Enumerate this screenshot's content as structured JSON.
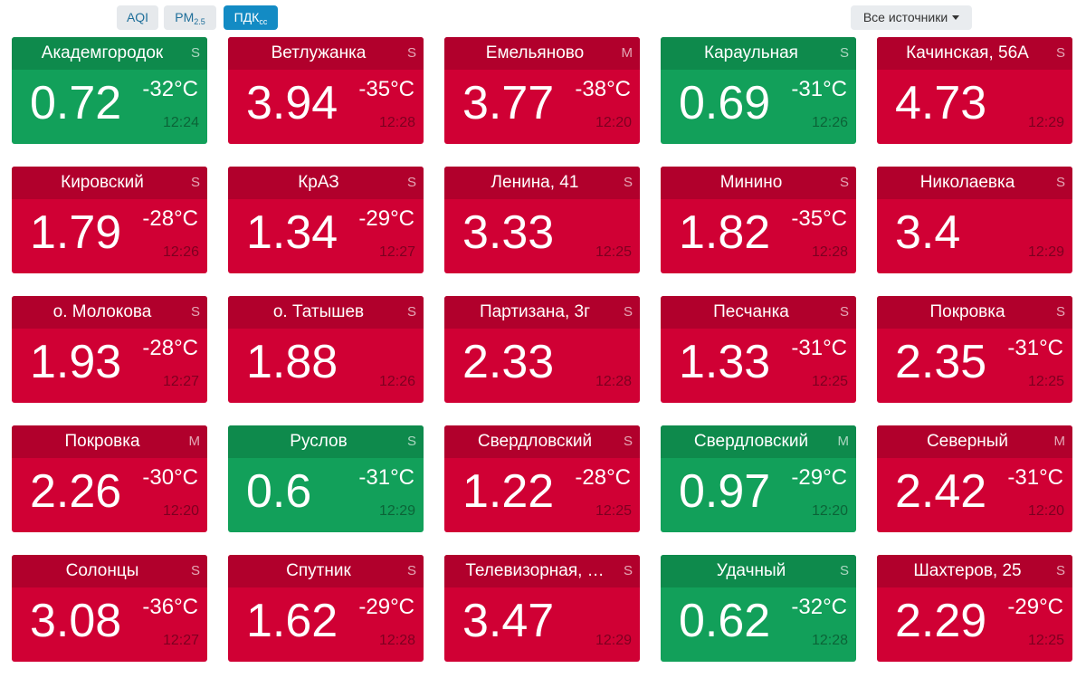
{
  "toolbar": {
    "aqi_label": "AQI",
    "pm_label": "PM",
    "pm_sub": "2.5",
    "pdk_label": "ПДК",
    "pdk_sub": "сс",
    "active": "pdk",
    "sources_label": "Все источники"
  },
  "colors": {
    "red": "#d00034",
    "green": "#12a05a"
  },
  "stations": [
    {
      "name": "Академгородок",
      "source": "S",
      "value": "0.72",
      "temp": "-32°C",
      "time": "12:24",
      "status": "green"
    },
    {
      "name": "Ветлужанка",
      "source": "S",
      "value": "3.94",
      "temp": "-35°C",
      "time": "12:28",
      "status": "red"
    },
    {
      "name": "Емельяново",
      "source": "M",
      "value": "3.77",
      "temp": "-38°C",
      "time": "12:20",
      "status": "red"
    },
    {
      "name": "Караульная",
      "source": "S",
      "value": "0.69",
      "temp": "-31°C",
      "time": "12:26",
      "status": "green"
    },
    {
      "name": "Качинская, 56А",
      "source": "S",
      "value": "4.73",
      "temp": "",
      "time": "12:29",
      "status": "red"
    },
    {
      "name": "Кировский",
      "source": "S",
      "value": "1.79",
      "temp": "-28°C",
      "time": "12:26",
      "status": "red"
    },
    {
      "name": "КрАЗ",
      "source": "S",
      "value": "1.34",
      "temp": "-29°C",
      "time": "12:27",
      "status": "red"
    },
    {
      "name": "Ленина, 41",
      "source": "S",
      "value": "3.33",
      "temp": "",
      "time": "12:25",
      "status": "red"
    },
    {
      "name": "Минино",
      "source": "S",
      "value": "1.82",
      "temp": "-35°C",
      "time": "12:28",
      "status": "red"
    },
    {
      "name": "Николаевка",
      "source": "S",
      "value": "3.4",
      "temp": "",
      "time": "12:29",
      "status": "red"
    },
    {
      "name": "о. Молокова",
      "source": "S",
      "value": "1.93",
      "temp": "-28°C",
      "time": "12:27",
      "status": "red"
    },
    {
      "name": "о. Татышев",
      "source": "S",
      "value": "1.88",
      "temp": "",
      "time": "12:26",
      "status": "red"
    },
    {
      "name": "Партизана, 3г",
      "source": "S",
      "value": "2.33",
      "temp": "",
      "time": "12:28",
      "status": "red"
    },
    {
      "name": "Песчанка",
      "source": "S",
      "value": "1.33",
      "temp": "-31°C",
      "time": "12:25",
      "status": "red"
    },
    {
      "name": "Покровка",
      "source": "S",
      "value": "2.35",
      "temp": "-31°C",
      "time": "12:25",
      "status": "red"
    },
    {
      "name": "Покровка",
      "source": "M",
      "value": "2.26",
      "temp": "-30°C",
      "time": "12:20",
      "status": "red"
    },
    {
      "name": "Руслов",
      "source": "S",
      "value": "0.6",
      "temp": "-31°C",
      "time": "12:29",
      "status": "green"
    },
    {
      "name": "Свердловский",
      "source": "S",
      "value": "1.22",
      "temp": "-28°C",
      "time": "12:25",
      "status": "red"
    },
    {
      "name": "Свердловский",
      "source": "M",
      "value": "0.97",
      "temp": "-29°C",
      "time": "12:20",
      "status": "green"
    },
    {
      "name": "Северный",
      "source": "M",
      "value": "2.42",
      "temp": "-31°C",
      "time": "12:20",
      "status": "red"
    },
    {
      "name": "Солонцы",
      "source": "S",
      "value": "3.08",
      "temp": "-36°C",
      "time": "12:27",
      "status": "red"
    },
    {
      "name": "Спутник",
      "source": "S",
      "value": "1.62",
      "temp": "-29°C",
      "time": "12:28",
      "status": "red"
    },
    {
      "name": "Телевизорная, …",
      "source": "S",
      "value": "3.47",
      "temp": "",
      "time": "12:29",
      "status": "red"
    },
    {
      "name": "Удачный",
      "source": "S",
      "value": "0.62",
      "temp": "-32°C",
      "time": "12:28",
      "status": "green"
    },
    {
      "name": "Шахтеров, 25",
      "source": "S",
      "value": "2.29",
      "temp": "-29°C",
      "time": "12:25",
      "status": "red"
    }
  ]
}
